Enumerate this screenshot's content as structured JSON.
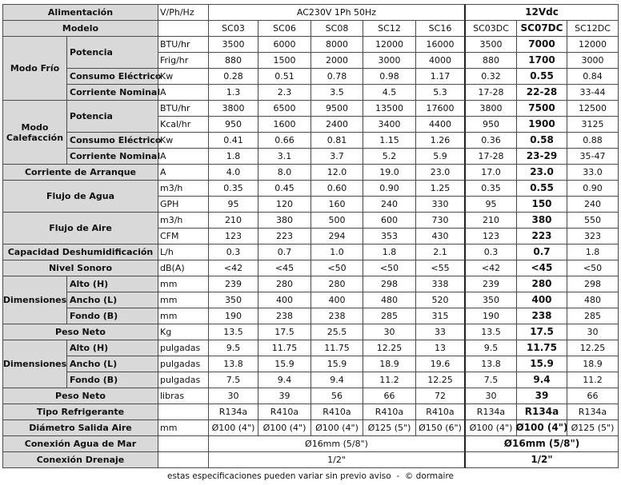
{
  "header": {
    "label": "Alimentación",
    "unit": "V/Ph/Hz",
    "ac": "AC230V 1Ph 50Hz",
    "dc": "12Vdc"
  },
  "models": {
    "label": "Modelo",
    "names": [
      "SC03",
      "SC06",
      "SC08",
      "SC12",
      "SC16",
      "SC03DC",
      "SC07DC",
      "SC12DC"
    ],
    "highlight_column": 6
  },
  "sections": [
    {
      "label": "Modo Frío",
      "items": [
        {
          "label": "Potencia",
          "lines": [
            {
              "unit": "BTU/hr",
              "values": [
                "3500",
                "6000",
                "8000",
                "12000",
                "16000",
                "3500",
                "7000",
                "12000"
              ]
            },
            {
              "unit": "Frig/hr",
              "values": [
                "880",
                "1500",
                "2000",
                "3000",
                "4000",
                "880",
                "1700",
                "3000"
              ]
            }
          ]
        },
        {
          "label": "Consumo Eléctrico",
          "lines": [
            {
              "unit": "Kw",
              "values": [
                "0.28",
                "0.51",
                "0.78",
                "0.98",
                "1.17",
                "0.32",
                "0.55",
                "0.84"
              ]
            }
          ]
        },
        {
          "label": "Corriente Nominal",
          "lines": [
            {
              "unit": "A",
              "values": [
                "1.3",
                "2.3",
                "3.5",
                "4.5",
                "5.3",
                "17-28",
                "22-28",
                "33-44"
              ]
            }
          ]
        }
      ]
    },
    {
      "label": "Modo Calefacción",
      "items": [
        {
          "label": "Potencia",
          "lines": [
            {
              "unit": "BTU/hr",
              "values": [
                "3800",
                "6500",
                "9500",
                "13500",
                "17600",
                "3800",
                "7500",
                "12500"
              ]
            },
            {
              "unit": "Kcal/hr",
              "values": [
                "950",
                "1600",
                "2400",
                "3400",
                "4400",
                "950",
                "1900",
                "3125"
              ]
            }
          ]
        },
        {
          "label": "Consumo Eléctrico",
          "lines": [
            {
              "unit": "Kw",
              "values": [
                "0.41",
                "0.66",
                "0.81",
                "1.15",
                "1.26",
                "0.36",
                "0.58",
                "0.88"
              ]
            }
          ]
        },
        {
          "label": "Corriente Nominal",
          "lines": [
            {
              "unit": "A",
              "values": [
                "1.8",
                "3.1",
                "3.7",
                "5.2",
                "5.9",
                "17-28",
                "23-29",
                "35-47"
              ]
            }
          ]
        }
      ]
    },
    {
      "label": "Corriente de Arranque",
      "lines": [
        {
          "unit": "A",
          "values": [
            "4.0",
            "8.0",
            "12.0",
            "19.0",
            "23.0",
            "17.0",
            "23.0",
            "33.0"
          ]
        }
      ]
    },
    {
      "label": "Flujo de Agua",
      "lines": [
        {
          "unit": "m3/h",
          "values": [
            "0.35",
            "0.45",
            "0.60",
            "0.90",
            "1.25",
            "0.35",
            "0.55",
            "0.90"
          ]
        },
        {
          "unit": "GPH",
          "values": [
            "95",
            "120",
            "160",
            "240",
            "330",
            "95",
            "150",
            "240"
          ]
        }
      ]
    },
    {
      "label": "Flujo de Aire",
      "lines": [
        {
          "unit": "m3/h",
          "values": [
            "210",
            "380",
            "500",
            "600",
            "730",
            "210",
            "380",
            "550"
          ]
        },
        {
          "unit": "CFM",
          "values": [
            "123",
            "223",
            "294",
            "353",
            "430",
            "123",
            "223",
            "323"
          ]
        }
      ]
    },
    {
      "label": "Capacidad Deshumidificación",
      "lines": [
        {
          "unit": "L/h",
          "values": [
            "0.3",
            "0.7",
            "1.0",
            "1.8",
            "2.1",
            "0.3",
            "0.7",
            "1.8"
          ]
        }
      ]
    },
    {
      "label": "Nivel Sonoro",
      "lines": [
        {
          "unit": "dB(A)",
          "values": [
            "<42",
            "<45",
            "<50",
            "<50",
            "<55",
            "<42",
            "<45",
            "<50"
          ]
        }
      ]
    },
    {
      "label": "Dimensiones",
      "items": [
        {
          "label": "Alto (H)",
          "lines": [
            {
              "unit": "mm",
              "values": [
                "239",
                "280",
                "280",
                "298",
                "338",
                "239",
                "280",
                "298"
              ]
            }
          ]
        },
        {
          "label": "Ancho (L)",
          "lines": [
            {
              "unit": "mm",
              "values": [
                "350",
                "400",
                "400",
                "480",
                "520",
                "350",
                "400",
                "480"
              ]
            }
          ]
        },
        {
          "label": "Fondo (B)",
          "lines": [
            {
              "unit": "mm",
              "values": [
                "190",
                "238",
                "238",
                "285",
                "315",
                "190",
                "238",
                "285"
              ]
            }
          ]
        }
      ]
    },
    {
      "label": "Peso Neto",
      "lines": [
        {
          "unit": "Kg",
          "values": [
            "13.5",
            "17.5",
            "25.5",
            "30",
            "33",
            "13.5",
            "17.5",
            "30"
          ]
        }
      ]
    },
    {
      "label": "Dimensiones",
      "items": [
        {
          "label": "Alto (H)",
          "lines": [
            {
              "unit": "pulgadas",
              "values": [
                "9.5",
                "11.75",
                "11.75",
                "12.25",
                "13",
                "9.5",
                "11.75",
                "12.25"
              ]
            }
          ]
        },
        {
          "label": "Ancho (L)",
          "lines": [
            {
              "unit": "pulgadas",
              "values": [
                "13.8",
                "15.9",
                "15.9",
                "18.9",
                "19.6",
                "13.8",
                "15.9",
                "18.9"
              ]
            }
          ]
        },
        {
          "label": "Fondo (B)",
          "lines": [
            {
              "unit": "pulgadas",
              "values": [
                "7.5",
                "9.4",
                "9.4",
                "11.2",
                "12.25",
                "7.5",
                "9.4",
                "11.2"
              ]
            }
          ]
        }
      ]
    },
    {
      "label": "Peso Neto",
      "lines": [
        {
          "unit": "libras",
          "values": [
            "30",
            "39",
            "56",
            "66",
            "72",
            "30",
            "39",
            "66"
          ]
        }
      ]
    },
    {
      "label": "Tipo Refrigerante",
      "lines": [
        {
          "values": [
            "R134a",
            "R410a",
            "R410a",
            "R410a",
            "R410a",
            "R134a",
            "R134a",
            "R134a"
          ]
        }
      ]
    },
    {
      "label": "Diámetro Salida Aire",
      "lines": [
        {
          "unit": "mm",
          "values": [
            "Ø100 (4\")",
            "Ø100 (4\")",
            "Ø100 (4\")",
            "Ø125 (5\")",
            "Ø150 (6\")",
            "Ø100 (4\")",
            "Ø100 (4\")",
            "Ø125 (5\")"
          ]
        }
      ]
    },
    {
      "label": "Conexión Agua de Mar",
      "lines": [
        {
          "ac": "Ø16mm (5/8\")",
          "dc": "Ø16mm (5/8\")"
        }
      ]
    },
    {
      "label": "Conexión Drenaje",
      "lines": [
        {
          "ac": "1/2\"",
          "dc": "1/2\""
        }
      ]
    }
  ],
  "footer": "estas especificaciones pueden variar sin previo aviso  -  © dormaire"
}
